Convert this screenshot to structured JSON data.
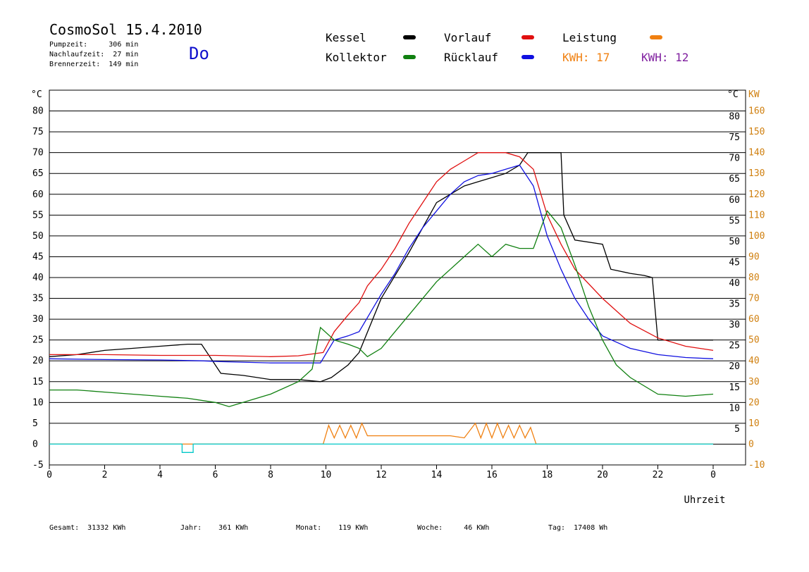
{
  "header": {
    "title": "CosmoSol 15.4.2010",
    "day": "Do",
    "stats": [
      "Pumpzeit:     306 min",
      "Nachlaufzeit:  27 min",
      "Brennerzeit:  149 min"
    ]
  },
  "legend": {
    "items": [
      {
        "label": "Kessel",
        "color": "#000000"
      },
      {
        "label": "Vorlauf",
        "color": "#e01010"
      },
      {
        "label": "Leistung",
        "color": "#f08010"
      },
      {
        "label": "Kollektor",
        "color": "#108010"
      },
      {
        "label": "Rücklauf",
        "color": "#1010e0"
      }
    ],
    "kwh1": {
      "label": "KWH:",
      "value": "17",
      "color": "#f08010"
    },
    "kwh2": {
      "label": "KWH:",
      "value": "12",
      "color": "#8020a0"
    }
  },
  "footer": {
    "gesamt": "Gesamt:  31332 KWh",
    "jahr": "Jahr:    361 KWh",
    "monat": "Monat:    119 KWh",
    "woche": "Woche:     46 KWh",
    "tag": "Tag:  17408 Wh"
  },
  "chart_data": {
    "type": "line",
    "xlabel": "Uhrzeit",
    "ylabel_left": "°C",
    "ylabel_right_temp": "°C",
    "ylabel_right_power": "KW",
    "xlim": [
      0,
      24
    ],
    "ylim": [
      -5,
      85
    ],
    "x_ticks": [
      "0",
      "2",
      "4",
      "6",
      "8",
      "10",
      "12",
      "14",
      "16",
      "18",
      "20",
      "22",
      "0"
    ],
    "y_ticks_left": [
      "-5",
      "0",
      "5",
      "10",
      "15",
      "20",
      "25",
      "30",
      "35",
      "40",
      "45",
      "50",
      "55",
      "60",
      "65",
      "70",
      "75",
      "80"
    ],
    "y_ticks_right_temp": [
      "5",
      "10",
      "15",
      "20",
      "25",
      "30",
      "35",
      "40",
      "45",
      "50",
      "55",
      "60",
      "65",
      "70",
      "75",
      "80"
    ],
    "y_ticks_right_power": [
      "-10",
      "0",
      "10",
      "20",
      "30",
      "40",
      "50",
      "60",
      "70",
      "80",
      "90",
      "100",
      "110",
      "120",
      "130",
      "140",
      "150",
      "160"
    ],
    "grid": "horizontal",
    "series": [
      {
        "name": "Kessel",
        "color": "#000000",
        "x": [
          0,
          1,
          2,
          3,
          4,
          5,
          5.5,
          6.2,
          7,
          8,
          9,
          9.8,
          10.2,
          10.8,
          11.2,
          12,
          13,
          14,
          15,
          15.5,
          16,
          16.5,
          17,
          17.3,
          17.5,
          17.8,
          18.5,
          18.6,
          19,
          20,
          20.3,
          21,
          21.5,
          21.8,
          22,
          22.5,
          23,
          24
        ],
        "y": [
          21,
          21.5,
          22.5,
          23,
          23.5,
          24,
          24,
          17,
          16.5,
          15.5,
          15.5,
          15,
          16,
          19,
          22,
          35,
          46,
          58,
          62,
          63,
          64,
          65,
          67,
          70,
          70,
          70,
          70,
          55,
          49,
          48,
          42,
          41,
          40.5,
          40,
          25,
          25,
          25,
          25
        ]
      },
      {
        "name": "Vorlauf",
        "color": "#e01010",
        "x": [
          0,
          2,
          4,
          6,
          8,
          9,
          9.9,
          10.3,
          10.8,
          11.2,
          11.5,
          12,
          12.5,
          13,
          13.5,
          14,
          14.5,
          15,
          15.5,
          16,
          16.5,
          17,
          17.5,
          18,
          18.5,
          19,
          20,
          21,
          22,
          23,
          24
        ],
        "y": [
          21.5,
          21.5,
          21.3,
          21.3,
          21,
          21.2,
          22,
          27,
          31,
          34,
          38,
          42,
          47,
          53,
          58,
          63,
          66,
          68,
          70,
          70,
          70,
          69,
          66,
          55,
          48,
          42,
          35,
          29,
          25.5,
          23.5,
          22.5
        ]
      },
      {
        "name": "Rücklauf",
        "color": "#1010e0",
        "x": [
          0,
          2,
          4,
          5.5,
          6.2,
          8,
          9.8,
          10.3,
          10.8,
          11.2,
          12,
          12.5,
          13,
          13.5,
          14,
          14.5,
          15,
          15.5,
          16,
          16.5,
          17,
          17.5,
          18,
          18.5,
          19,
          19.5,
          20,
          21,
          22,
          23,
          24
        ],
        "y": [
          20.5,
          20.3,
          20.2,
          20,
          19.8,
          19.5,
          19.5,
          25,
          26,
          27,
          36,
          41,
          47,
          52,
          56,
          60,
          63,
          64.5,
          65,
          66,
          67,
          62,
          50,
          42,
          35,
          30,
          26,
          23,
          21.5,
          20.8,
          20.5
        ]
      },
      {
        "name": "Kollektor",
        "color": "#108010",
        "x": [
          0,
          1,
          2,
          3,
          4,
          5,
          6,
          6.5,
          7,
          8,
          9,
          9.5,
          9.8,
          10.3,
          10.8,
          11.2,
          11.5,
          12,
          12.5,
          13,
          13.5,
          14,
          14.5,
          15,
          15.5,
          16,
          16.5,
          17,
          17.5,
          18,
          18.5,
          19,
          19.5,
          20,
          20.5,
          21,
          22,
          23,
          24
        ],
        "y": [
          13,
          13,
          12.5,
          12,
          11.5,
          11,
          10,
          9,
          10,
          12,
          15,
          18,
          28,
          25,
          24,
          23,
          21,
          23,
          27,
          31,
          35,
          39,
          42,
          45,
          48,
          45,
          48,
          47,
          47,
          56,
          52,
          43,
          33,
          25,
          19,
          16,
          12,
          11.5,
          12
        ]
      },
      {
        "name": "Leistung",
        "color": "#f08010",
        "x": [
          0,
          9.9,
          10.1,
          10.3,
          10.5,
          10.7,
          10.9,
          11.1,
          11.3,
          11.5,
          12,
          13,
          14,
          14.5,
          15,
          15.4,
          15.6,
          15.8,
          16,
          16.2,
          16.4,
          16.6,
          16.8,
          17,
          17.2,
          17.4,
          17.6,
          24
        ],
        "y": [
          0,
          0,
          4.5,
          1.5,
          4.5,
          1.5,
          4.5,
          1.5,
          5,
          2,
          2,
          2,
          2,
          2,
          1.5,
          5,
          1.5,
          5,
          1.5,
          5,
          1.5,
          4.5,
          1.5,
          4.5,
          1.5,
          4,
          0,
          0
        ]
      },
      {
        "name": "Pumpe",
        "color": "#00c8c8",
        "x": [
          0,
          4.8,
          4.8,
          5.2,
          5.2,
          24
        ],
        "y": [
          0,
          0,
          -2,
          -2,
          0,
          0
        ]
      }
    ]
  }
}
